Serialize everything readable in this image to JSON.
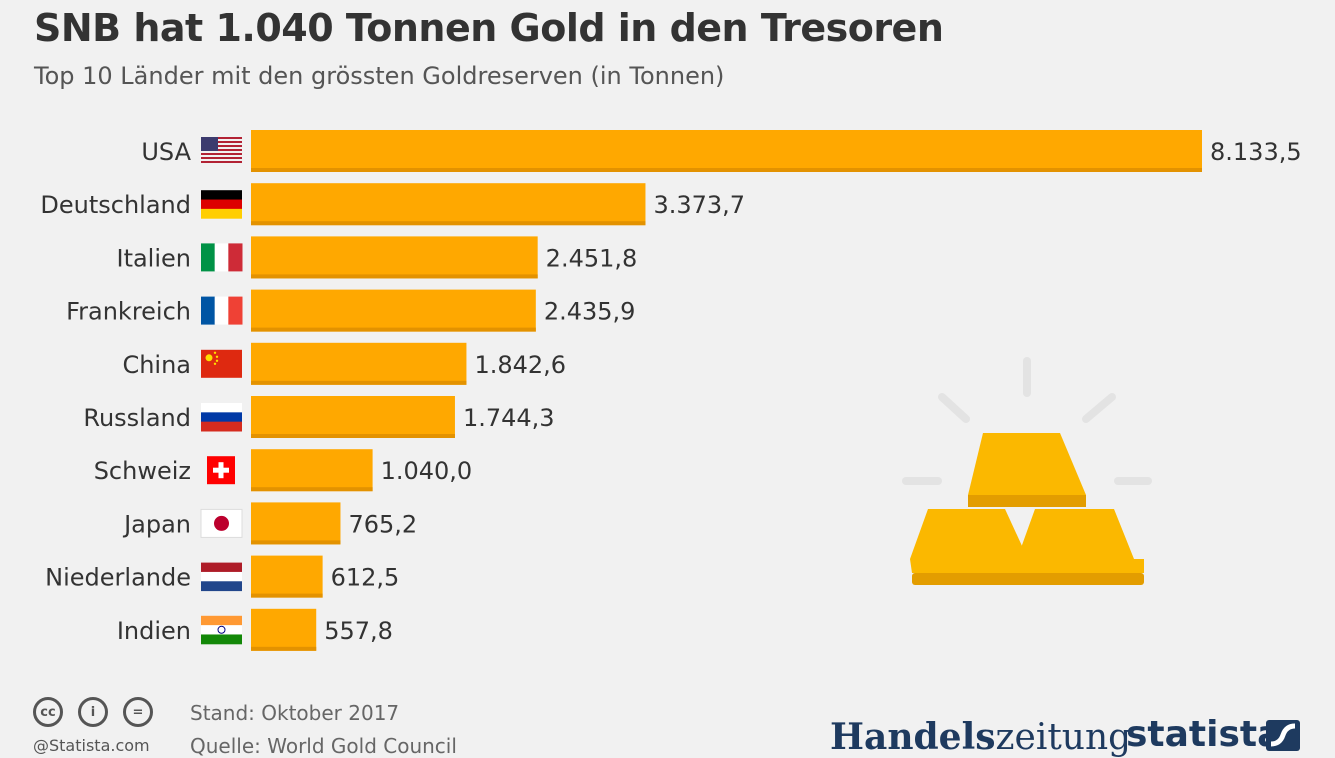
{
  "title": "SNB hat 1.040 Tonnen Gold in den Tresoren",
  "subtitle": "Top 10 Länder mit den grössten Goldreserven (in Tonnen)",
  "chart_data": {
    "type": "bar",
    "orientation": "horizontal",
    "categories": [
      "USA",
      "Deutschland",
      "Italien",
      "Frankreich",
      "China",
      "Russland",
      "Schweiz",
      "Japan",
      "Niederlande",
      "Indien"
    ],
    "values": [
      8133.5,
      3373.7,
      2451.8,
      2435.9,
      1842.6,
      1744.3,
      1040.0,
      765.2,
      612.5,
      557.8
    ],
    "value_labels": [
      "8.133,5",
      "3.373,7",
      "2.451,8",
      "2.435,9",
      "1.842,6",
      "1.744,3",
      "1.040,0",
      "765,2",
      "612,5",
      "557,8"
    ],
    "flags": [
      "usa-flag",
      "germany-flag",
      "italy-flag",
      "france-flag",
      "china-flag",
      "russia-flag",
      "switzerland-flag",
      "japan-flag",
      "netherlands-flag",
      "india-flag"
    ],
    "xlim": [
      0,
      8133.5
    ],
    "grid": false,
    "legend": "none",
    "bar_color": "#ffa800",
    "bar_edge_color": "#e39200"
  },
  "decoration": {
    "icon": "gold-bars-icon",
    "color": "#fbb800"
  },
  "footer": {
    "license_icons": [
      "cc",
      "i",
      "="
    ],
    "credit": "@Statista.com",
    "stand": "Stand: Oktober 2017",
    "source": "Quelle: World Gold Council",
    "logo_handelszeitung_bold": "Handels",
    "logo_handelszeitung_thin": "zeitung",
    "logo_statista": "statista"
  }
}
